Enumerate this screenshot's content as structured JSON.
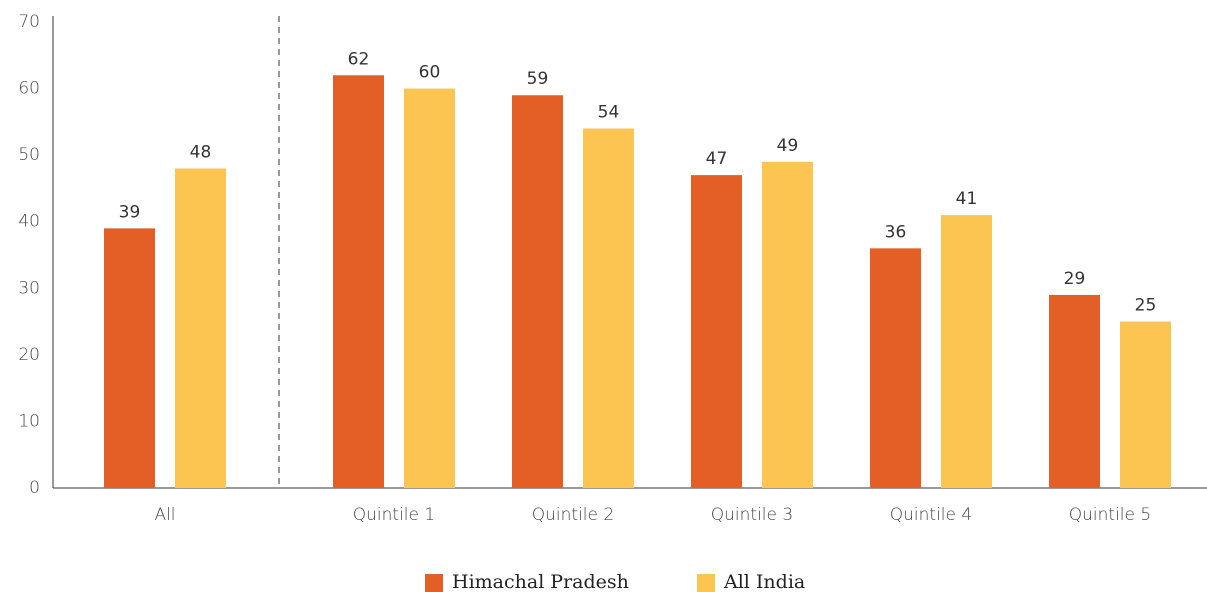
{
  "chart_data": {
    "type": "bar",
    "categories": [
      "All",
      "Quintile 1",
      "Quintile 2",
      "Quintile 3",
      "Quintile 4",
      "Quintile 5"
    ],
    "series": [
      {
        "name": "Himachal Pradesh",
        "color": "#e35f26",
        "values": [
          39,
          62,
          59,
          47,
          36,
          29
        ]
      },
      {
        "name": "All India",
        "color": "#fcc552",
        "values": [
          48,
          60,
          54,
          49,
          41,
          25
        ]
      }
    ],
    "ylim": [
      0,
      70
    ],
    "yticks": [
      0,
      10,
      20,
      30,
      40,
      50,
      60,
      70
    ],
    "grid": false,
    "legend": "bottom"
  }
}
